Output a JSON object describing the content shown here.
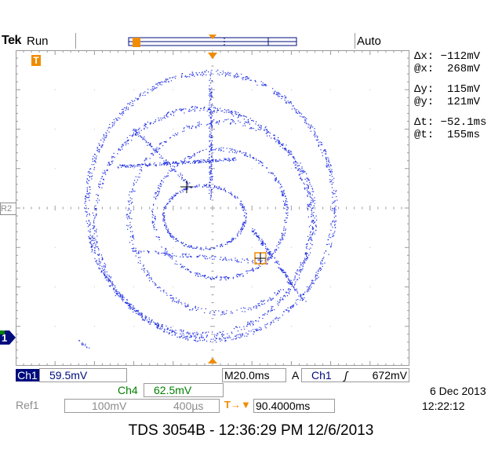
{
  "status": {
    "brand": "Tek",
    "run_state": "Run",
    "trigger_mode": "Auto"
  },
  "markers": {
    "trigger": "T",
    "ref": "R2",
    "channel1": "1"
  },
  "readouts": {
    "dx": "Δx: −112mV",
    "ax": "@x:  268mV",
    "dy": "Δy:  115mV",
    "ay": "@y:  121mV",
    "dt": "Δt: −52.1ms",
    "at": "@t:  155ms"
  },
  "bottom": {
    "ch1_label": "Ch1",
    "ch1_scale": "59.5mV",
    "timebase": "M20.0ms",
    "trig_mode_label": "A",
    "trig_source": "Ch1",
    "trig_slope": "ʃ",
    "trig_level": "672mV",
    "ch4_label": "Ch4",
    "ch4_scale": "62.5mV",
    "ref_label": "Ref1",
    "ref_scale": "100mV",
    "ref_time": "400µs",
    "trig_pos_icon": "T→▼",
    "trig_pos": "90.4000ms",
    "date": "6 Dec  2013",
    "time": "12:22:12"
  },
  "footer": "TDS 3054B - 12:36:29 PM    12/6/2013",
  "colors": {
    "trace": "#2030e0",
    "navy": "#000c7c",
    "orange": "#f08c00",
    "green": "#008000",
    "grid": "#9a9a9a"
  }
}
